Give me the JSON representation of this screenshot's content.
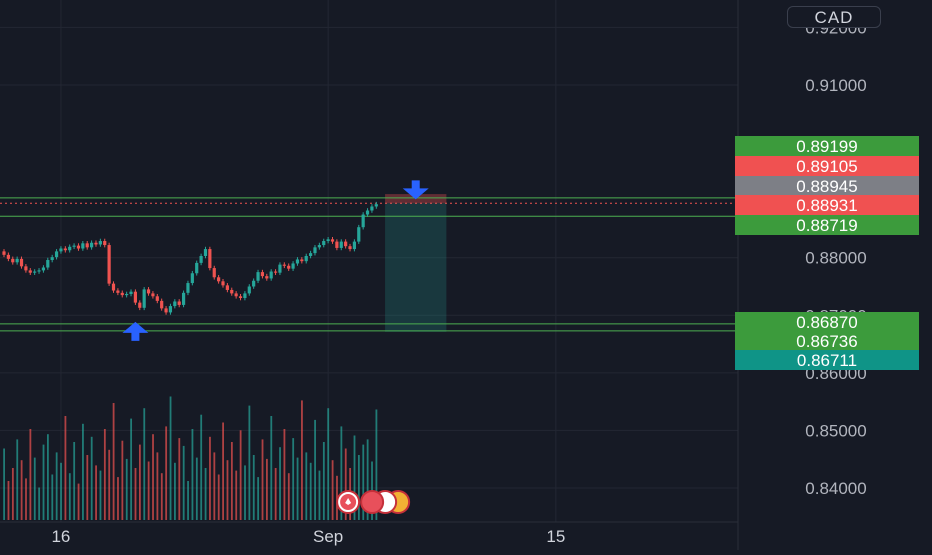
{
  "currency_label": "CAD",
  "colors": {
    "background": "#161a25",
    "grid": "#232733",
    "up": "#26a69a",
    "down": "#ef5350",
    "green_tag": "#3c9b3c",
    "red_tag": "#f05151",
    "gray_tag": "#7d7f86",
    "teal_tag": "#0f9487",
    "level_line": "#4caf50",
    "arrow": "#2962ff"
  },
  "chart_data": {
    "type": "candlestick",
    "ylim": [
      0.835,
      0.923
    ],
    "grid": true,
    "y_ticks": [
      {
        "value": 0.92,
        "label": "0.92000"
      },
      {
        "value": 0.91,
        "label": "0.91000"
      },
      {
        "value": 0.88,
        "label": "0.88000"
      },
      {
        "value": 0.87,
        "label": "0.87000"
      },
      {
        "value": 0.86,
        "label": "0.86000"
      },
      {
        "value": 0.85,
        "label": "0.85000"
      },
      {
        "value": 0.84,
        "label": "0.84000"
      }
    ],
    "x_ticks": [
      {
        "label": "16",
        "index": 13
      },
      {
        "label": "Sep",
        "index": 74
      },
      {
        "label": "15",
        "index": 126
      }
    ],
    "closes": [
      0.8805,
      0.8798,
      0.8792,
      0.8798,
      0.8785,
      0.8778,
      0.8774,
      0.8776,
      0.8778,
      0.8783,
      0.8796,
      0.8801,
      0.8811,
      0.8816,
      0.8813,
      0.8819,
      0.8821,
      0.8816,
      0.8825,
      0.8818,
      0.8826,
      0.8823,
      0.8829,
      0.8822,
      0.8755,
      0.8743,
      0.8739,
      0.8735,
      0.8737,
      0.8741,
      0.8722,
      0.8713,
      0.8745,
      0.8738,
      0.8733,
      0.8725,
      0.8712,
      0.8705,
      0.8716,
      0.8724,
      0.8718,
      0.8739,
      0.8756,
      0.8773,
      0.8791,
      0.8803,
      0.8815,
      0.8782,
      0.8766,
      0.8759,
      0.8752,
      0.8744,
      0.8738,
      0.8733,
      0.873,
      0.8738,
      0.875,
      0.876,
      0.8775,
      0.8768,
      0.8764,
      0.8776,
      0.8774,
      0.8788,
      0.8786,
      0.8781,
      0.879,
      0.8797,
      0.8794,
      0.8803,
      0.8808,
      0.8818,
      0.8822,
      0.8829,
      0.8832,
      0.8828,
      0.8817,
      0.8828,
      0.882,
      0.8815,
      0.8828,
      0.8853,
      0.8875,
      0.8882,
      0.8889,
      0.8893
    ],
    "volumes": [
      0.55,
      0.3,
      0.4,
      0.62,
      0.46,
      0.32,
      0.7,
      0.48,
      0.25,
      0.58,
      0.66,
      0.35,
      0.52,
      0.44,
      0.8,
      0.36,
      0.6,
      0.28,
      0.74,
      0.5,
      0.64,
      0.42,
      0.38,
      0.7,
      0.54,
      0.9,
      0.33,
      0.61,
      0.47,
      0.78,
      0.4,
      0.58,
      0.86,
      0.45,
      0.66,
      0.52,
      0.36,
      0.72,
      0.95,
      0.44,
      0.63,
      0.57,
      0.3,
      0.7,
      0.48,
      0.81,
      0.4,
      0.64,
      0.52,
      0.35,
      0.75,
      0.46,
      0.6,
      0.38,
      0.69,
      0.42,
      0.88,
      0.5,
      0.33,
      0.62,
      0.47,
      0.8,
      0.4,
      0.56,
      0.7,
      0.36,
      0.63,
      0.48,
      0.92,
      0.52,
      0.44,
      0.77,
      0.38,
      0.6,
      0.86,
      0.46,
      0.34,
      0.72,
      0.55,
      0.4,
      0.65,
      0.5,
      0.58,
      0.62,
      0.45,
      0.85
    ],
    "levels": [
      0.8904,
      0.88945,
      0.8872,
      0.8685,
      0.8673
    ],
    "position": {
      "start_index": 87,
      "end_index": 101,
      "entry": 0.88945,
      "stop": 0.89105,
      "target": 0.86711
    },
    "price_tags": [
      {
        "label": "0.89199",
        "value": 0.89199,
        "color": "green"
      },
      {
        "label": "0.89105",
        "value": 0.89105,
        "color": "red"
      },
      {
        "label": "0.88945",
        "value": 0.88945,
        "color": "gray"
      },
      {
        "label": "0.88931",
        "value": 0.88931,
        "color": "red"
      },
      {
        "label": "0.88719",
        "value": 0.88719,
        "color": "green"
      },
      {
        "label": "0.86870",
        "value": 0.8687,
        "color": "green"
      },
      {
        "label": "0.86736",
        "value": 0.86736,
        "color": "green"
      },
      {
        "label": "0.86711",
        "value": 0.86711,
        "color": "teal"
      }
    ],
    "annotations": [
      {
        "type": "arrow-down",
        "index": 94,
        "value": 0.8917
      },
      {
        "type": "arrow-up",
        "index": 30,
        "value": 0.8673
      }
    ]
  }
}
